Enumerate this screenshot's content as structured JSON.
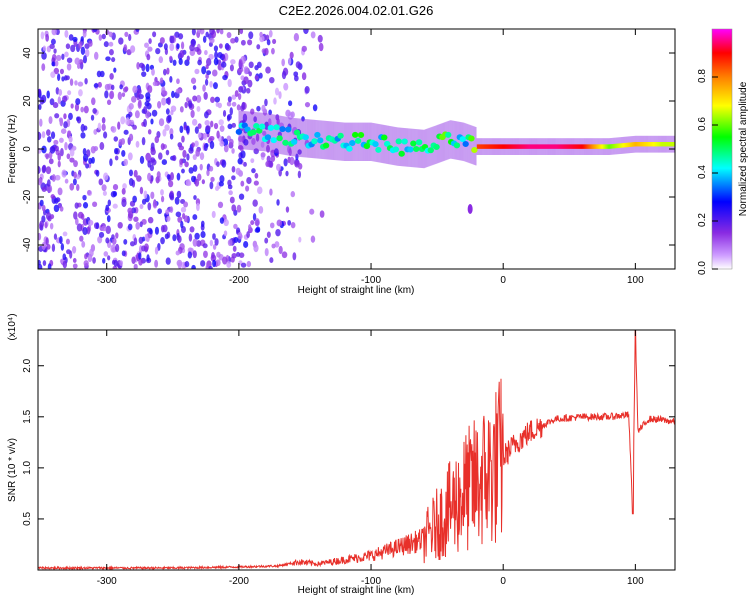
{
  "title": "C2E2.2026.004.02.01.G26",
  "chart_data": [
    {
      "type": "heatmap",
      "xlabel": "Height of straight line (km)",
      "ylabel": "Frequency (Hz)",
      "xlim": [
        -352,
        130
      ],
      "ylim": [
        -50,
        50
      ],
      "x_ticks": [
        -300,
        -200,
        -100,
        0,
        100
      ],
      "y_ticks": [
        -40,
        -20,
        0,
        20,
        40
      ],
      "grid": false,
      "colorbar": {
        "label": "Normalized spectral amplitude",
        "range": [
          0,
          1
        ],
        "ticks": [
          "0.0",
          "0.2",
          "0.4",
          "0.6",
          "0.8"
        ],
        "colors": [
          "#ffffff",
          "#cc99ff",
          "#8a2be2",
          "#0000ff",
          "#00ffff",
          "#00ff00",
          "#ffff00",
          "#ff7f00",
          "#ff0000",
          "#ff00ff"
        ]
      },
      "ridge": {
        "x": [
          -200,
          -180,
          -160,
          -140,
          -120,
          -100,
          -80,
          -60,
          -40,
          -30,
          -20,
          0,
          20,
          40,
          60,
          80,
          100,
          120,
          130
        ],
        "y": [
          8,
          7,
          5,
          4,
          3,
          3,
          1,
          0,
          4,
          3,
          1,
          1,
          1,
          1,
          1,
          1,
          2,
          2,
          2
        ],
        "amplitude": [
          0.45,
          0.5,
          0.45,
          0.5,
          0.5,
          0.55,
          0.5,
          0.5,
          0.6,
          0.4,
          0.85,
          0.9,
          0.95,
          0.95,
          0.9,
          0.6,
          0.75,
          0.65,
          0.65
        ]
      }
    },
    {
      "type": "line",
      "xlabel": "Height of straight line (km)",
      "ylabel": "SNR (10 * v/v)",
      "y_multiplier_label": "(x10⁴)",
      "xlim": [
        -352,
        130
      ],
      "ylim": [
        0,
        2.35
      ],
      "x_ticks": [
        -300,
        -200,
        -100,
        0,
        100
      ],
      "y_ticks": [
        "0.5",
        "1.0",
        "1.5",
        "2.0"
      ],
      "line_color": "#e8302a",
      "grid": false,
      "series": [
        {
          "x": [
            -352,
            -300,
            -250,
            -200,
            -170,
            -155,
            -140,
            -120,
            -100,
            -80,
            -60,
            -50,
            -40,
            -30,
            -20,
            -10,
            0,
            10,
            20,
            30,
            40,
            60,
            80,
            95,
            98,
            100,
            102,
            110,
            120,
            130
          ],
          "y": [
            0.02,
            0.02,
            0.02,
            0.03,
            0.04,
            0.08,
            0.06,
            0.1,
            0.14,
            0.22,
            0.3,
            0.45,
            0.6,
            0.75,
            0.85,
            0.95,
            1.1,
            1.25,
            1.35,
            1.42,
            1.48,
            1.5,
            1.5,
            1.52,
            0.55,
            2.35,
            1.35,
            1.48,
            1.47,
            1.45
          ]
        }
      ]
    }
  ]
}
